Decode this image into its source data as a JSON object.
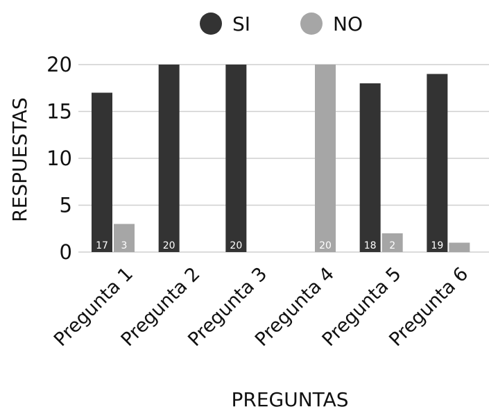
{
  "chart_data": {
    "type": "bar",
    "title": "",
    "xlabel": "PREGUNTAS",
    "ylabel": "RESPUESTAS",
    "categories": [
      "Pregunta 1",
      "Pregunta 2",
      "Pregunta 3",
      "Pregunta 4",
      "Pregunta 5",
      "Pregunta 6"
    ],
    "series": [
      {
        "name": "SI",
        "color": "#333333",
        "values": [
          17,
          20,
          20,
          0,
          18,
          19
        ]
      },
      {
        "name": "NO",
        "color": "#a6a6a6",
        "values": [
          3,
          0,
          0,
          20,
          2,
          1
        ]
      }
    ],
    "data_labels": {
      "SI": [
        "17",
        "20",
        "20",
        "",
        "18",
        "19"
      ],
      "NO": [
        "3",
        "",
        "",
        "20",
        "2",
        ""
      ]
    },
    "yticks": [
      "0",
      "5",
      "10",
      "15",
      "20"
    ],
    "ylim": [
      0,
      20
    ],
    "grid": true,
    "legend_position": "top-center"
  }
}
